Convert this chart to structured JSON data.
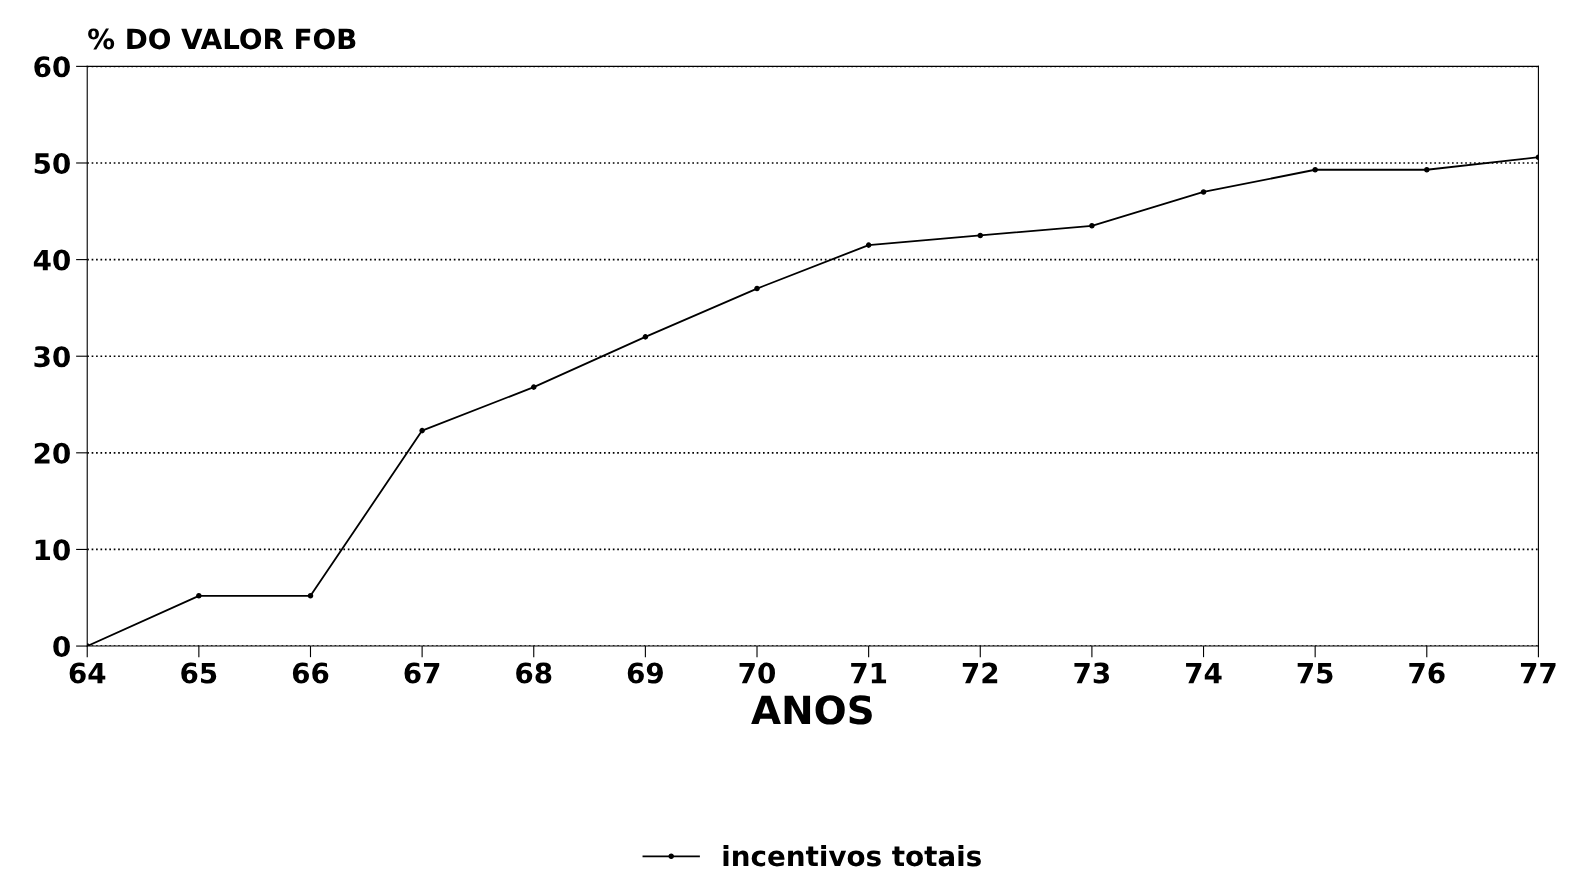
{
  "chart_data": {
    "type": "line",
    "ylabel": "% DO VALOR FOB",
    "xlabel": "ANOS",
    "x": [
      64,
      65,
      66,
      67,
      68,
      69,
      70,
      71,
      72,
      73,
      74,
      75,
      76,
      77
    ],
    "series": [
      {
        "name": "incentivos totais",
        "color": "#000000",
        "values": [
          0,
          5.2,
          5.2,
          22.3,
          26.8,
          32,
          37,
          41.5,
          42.5,
          43.5,
          47,
          49.3,
          49.3,
          50.6
        ]
      }
    ],
    "xlim": [
      64,
      77
    ],
    "ylim": [
      0,
      60
    ],
    "xticks": [
      64,
      65,
      66,
      67,
      68,
      69,
      70,
      71,
      72,
      73,
      74,
      75,
      76,
      77
    ],
    "yticks": [
      0,
      10,
      20,
      30,
      40,
      50,
      60
    ],
    "grid": "y",
    "legend": "bottom",
    "marker": "circle",
    "line_style": "solid"
  }
}
